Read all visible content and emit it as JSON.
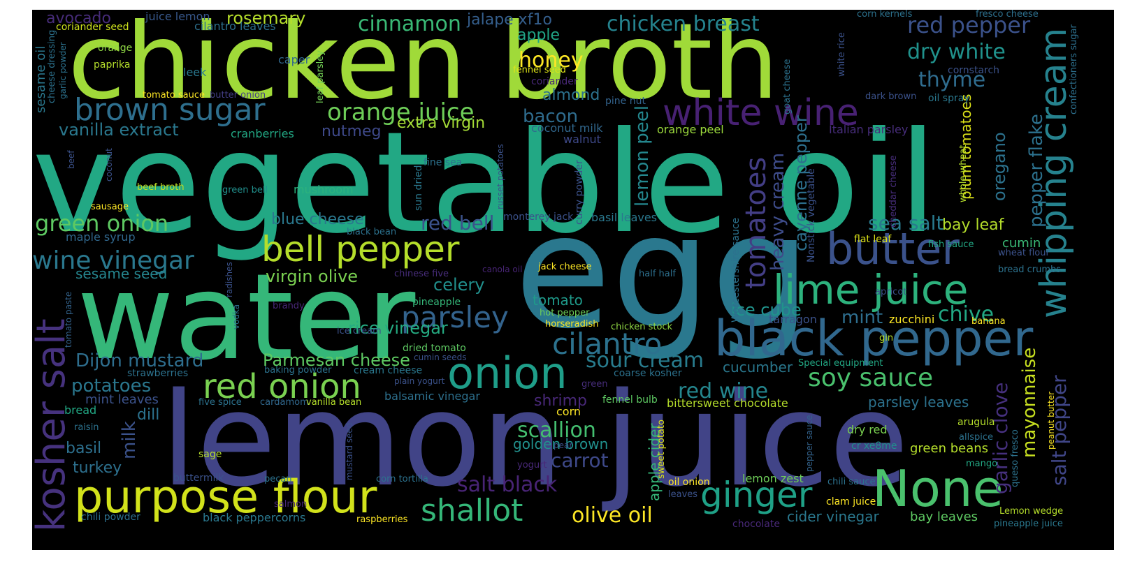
{
  "cloud": {
    "background": "#000000",
    "words": [
      {
        "text": "vegetable oil",
        "color": "#22a884"
      },
      {
        "text": "egg",
        "color": "#2a788e"
      },
      {
        "text": "lemon juice",
        "color": "#414487"
      },
      {
        "text": "water",
        "color": "#35b779"
      },
      {
        "text": "chicken broth",
        "color": "#a0da39"
      },
      {
        "text": "black pepper",
        "color": "#31688e"
      },
      {
        "text": "purpose flour",
        "color": "#d2e21b"
      },
      {
        "text": "onion",
        "color": "#1f9e89"
      },
      {
        "text": "None",
        "color": "#4ac16d"
      },
      {
        "text": "red onion",
        "color": "#7ad151"
      },
      {
        "text": "bell pepper",
        "color": "#b5de2b"
      },
      {
        "text": "butter",
        "color": "#3b528b"
      },
      {
        "text": "lime juice",
        "color": "#2db27d"
      },
      {
        "text": "white wine",
        "color": "#482173"
      },
      {
        "text": "kosher salt",
        "color": "#46327e"
      },
      {
        "text": "whipping cream",
        "color": "#26828e"
      },
      {
        "text": "brown sugar",
        "color": "#2e6f8e"
      },
      {
        "text": "ginger",
        "color": "#1fa187"
      },
      {
        "text": "shallot",
        "color": "#35b779"
      },
      {
        "text": "cilantro",
        "color": "#2c728e"
      },
      {
        "text": "parsley",
        "color": "#33638d"
      },
      {
        "text": "tomatoes",
        "color": "#433e85"
      },
      {
        "text": "orange juice",
        "color": "#6ece58"
      },
      {
        "text": "wine vinegar",
        "color": "#2a788e"
      },
      {
        "text": "green onion",
        "color": "#5ec962"
      },
      {
        "text": "soy sauce",
        "color": "#4ac16d"
      },
      {
        "text": "sour cream",
        "color": "#287c8e"
      },
      {
        "text": "cinnamon",
        "color": "#3aba76"
      },
      {
        "text": "chicken breast",
        "color": "#25838e"
      },
      {
        "text": "red pepper",
        "color": "#3b528b"
      },
      {
        "text": "dry white",
        "color": "#20928c"
      },
      {
        "text": "honey",
        "color": "#fde725"
      },
      {
        "text": "olive oil",
        "color": "#fde725"
      },
      {
        "text": "mayonnaise",
        "color": "#c8e020"
      },
      {
        "text": "garlic clove",
        "color": "#46307e"
      },
      {
        "text": "salt pepper",
        "color": "#404688"
      },
      {
        "text": "pepper flake",
        "color": "#2c718e"
      },
      {
        "text": "Dijon mustard",
        "color": "#2e6e8e"
      },
      {
        "text": "Parmesan cheese",
        "color": "#5ec962"
      },
      {
        "text": "potatoes",
        "color": "#2a778e"
      },
      {
        "text": "scallion",
        "color": "#44bf70"
      },
      {
        "text": "carrot",
        "color": "#3e4989"
      },
      {
        "text": "salt black",
        "color": "#482475"
      },
      {
        "text": "red wine",
        "color": "#24868e"
      },
      {
        "text": "heavy cream",
        "color": "#3e4c8a"
      },
      {
        "text": "sea salt",
        "color": "#297a8e"
      },
      {
        "text": "thyme",
        "color": "#2f6c8e"
      },
      {
        "text": "vanilla extract",
        "color": "#2a788e"
      },
      {
        "text": "red bell",
        "color": "#3b528b"
      },
      {
        "text": "bacon",
        "color": "#2f6c8e"
      },
      {
        "text": "lemon peel",
        "color": "#24878e"
      },
      {
        "text": "extra virgin",
        "color": "#a5db36"
      },
      {
        "text": "virgin olive",
        "color": "#7ad151"
      },
      {
        "text": "celery",
        "color": "#21908d"
      },
      {
        "text": "blue cheese",
        "color": "#2a788e"
      },
      {
        "text": "milk",
        "color": "#3b528b"
      },
      {
        "text": "chive",
        "color": "#22a884"
      },
      {
        "text": "mint",
        "color": "#2e6e8e"
      },
      {
        "text": "ice cube",
        "color": "#20938c"
      },
      {
        "text": "rice vinegar",
        "color": "#25ab82"
      },
      {
        "text": "tomato",
        "color": "#1f9a8a"
      },
      {
        "text": "cumin",
        "color": "#3aba76"
      },
      {
        "text": "bay leaf",
        "color": "#b5de2b"
      },
      {
        "text": "oregano",
        "color": "#2c728e"
      },
      {
        "text": "cayenne pepper",
        "color": "#2d708e"
      },
      {
        "text": "plum tomatoes",
        "color": "#dde318"
      },
      {
        "text": "almond",
        "color": "#2c728e"
      },
      {
        "text": "apple",
        "color": "#20a486"
      },
      {
        "text": "nutmeg",
        "color": "#3e4989"
      },
      {
        "text": "jalape xf1o",
        "color": "#355f8d"
      },
      {
        "text": "rosemary",
        "color": "#b5de2b"
      },
      {
        "text": "avocado",
        "color": "#472c7a"
      },
      {
        "text": "coriander seed",
        "color": "#cde11d"
      },
      {
        "text": "cilantro leaves",
        "color": "#2d708e"
      },
      {
        "text": "juice lemon",
        "color": "#38588c"
      },
      {
        "text": "orange",
        "color": "#8fd744"
      },
      {
        "text": "paprika",
        "color": "#b5de2b"
      },
      {
        "text": "caper",
        "color": "#31688e"
      },
      {
        "text": "leek",
        "color": "#2a788e"
      },
      {
        "text": "tomato sauce",
        "color": "#fde725"
      },
      {
        "text": "butter onion",
        "color": "#433e85"
      },
      {
        "text": "leaf parsley",
        "color": "#73d056"
      },
      {
        "text": "fennel seed",
        "color": "#dde318"
      },
      {
        "text": "coriander",
        "color": "#482878"
      },
      {
        "text": "pine nut",
        "color": "#33638d"
      },
      {
        "text": "coconut milk",
        "color": "#31688e"
      },
      {
        "text": "walnut",
        "color": "#3e4989"
      },
      {
        "text": "orange peel",
        "color": "#9bd93c"
      },
      {
        "text": "cranberries",
        "color": "#22a884"
      },
      {
        "text": "fine sea",
        "color": "#2c728e"
      },
      {
        "text": "curry powder",
        "color": "#3b528b"
      },
      {
        "text": "sun dried",
        "color": "#2a788e"
      },
      {
        "text": "russet potatoes",
        "color": "#3b528b"
      },
      {
        "text": "green bell",
        "color": "#21908d"
      },
      {
        "text": "beef broth",
        "color": "#c0df25"
      },
      {
        "text": "sausage",
        "color": "#fde725"
      },
      {
        "text": "mushroom",
        "color": "#2db27d"
      },
      {
        "text": "monterey jack",
        "color": "#3b528b"
      },
      {
        "text": "black bean",
        "color": "#2c728e"
      },
      {
        "text": "maple syrup",
        "color": "#31688e"
      },
      {
        "text": "sesame seed",
        "color": "#25858e"
      },
      {
        "text": "basil leaves",
        "color": "#2a788e"
      },
      {
        "text": "jack cheese",
        "color": "#fde725"
      },
      {
        "text": "canola oil",
        "color": "#482475"
      },
      {
        "text": "chinese five",
        "color": "#472d7b"
      },
      {
        "text": "half half",
        "color": "#2d708e"
      },
      {
        "text": "pineapple",
        "color": "#35b779"
      },
      {
        "text": "hot pepper",
        "color": "#6ece58"
      },
      {
        "text": "horseradish",
        "color": "#fde725"
      },
      {
        "text": "chicken stock",
        "color": "#90d743"
      },
      {
        "text": "brandy",
        "color": "#482878"
      },
      {
        "text": "vodka",
        "color": "#2d708e"
      },
      {
        "text": "radishes",
        "color": "#3b528b"
      },
      {
        "text": "tomato paste",
        "color": "#33638d"
      },
      {
        "text": "ice cream",
        "color": "#3b528b"
      },
      {
        "text": "dried tomato",
        "color": "#5ec962"
      },
      {
        "text": "cumin seeds",
        "color": "#3b528b"
      },
      {
        "text": "cream cheese",
        "color": "#2a788e"
      },
      {
        "text": "baking powder",
        "color": "#2c728e"
      },
      {
        "text": "plain yogurt",
        "color": "#3b528b"
      },
      {
        "text": "strawberries",
        "color": "#2c728e"
      },
      {
        "text": "green",
        "color": "#472d7b"
      },
      {
        "text": "coarse kosher",
        "color": "#2c728e"
      },
      {
        "text": "balsamic vinegar",
        "color": "#2d708e"
      },
      {
        "text": "shrimp",
        "color": "#482878"
      },
      {
        "text": "mint leaves",
        "color": "#3b528b"
      },
      {
        "text": "five spice",
        "color": "#2c728e"
      },
      {
        "text": "cardamom",
        "color": "#31688e"
      },
      {
        "text": "vanilla bean",
        "color": "#b5de2b"
      },
      {
        "text": "fennel bulb",
        "color": "#5ec962"
      },
      {
        "text": "bittersweet chocolate",
        "color": "#b5de2b"
      },
      {
        "text": "corn",
        "color": "#fde725"
      },
      {
        "text": "golden brown",
        "color": "#21908d"
      },
      {
        "text": "dill",
        "color": "#2c728e"
      },
      {
        "text": "bread",
        "color": "#22a884"
      },
      {
        "text": "raisin",
        "color": "#2c728e"
      },
      {
        "text": "basil",
        "color": "#2d708e"
      },
      {
        "text": "turkey",
        "color": "#2d708e"
      },
      {
        "text": "sage",
        "color": "#b5de2b"
      },
      {
        "text": "mustard seed",
        "color": "#3b528b"
      },
      {
        "text": "buttermilk",
        "color": "#3b528b"
      },
      {
        "text": "pecan",
        "color": "#2c728e"
      },
      {
        "text": "corn tortilla",
        "color": "#2c728e"
      },
      {
        "text": "salmon",
        "color": "#482878"
      },
      {
        "text": "chili powder",
        "color": "#2d708e"
      },
      {
        "text": "black peppercorns",
        "color": "#2a788e"
      },
      {
        "text": "raspberries",
        "color": "#fde725"
      },
      {
        "text": "apple cider",
        "color": "#35b779"
      },
      {
        "text": "sweet potato",
        "color": "#dde318"
      },
      {
        "text": "pear",
        "color": "#3b528b"
      },
      {
        "text": "yogurt",
        "color": "#482878"
      },
      {
        "text": "oil onion",
        "color": "#fde725"
      },
      {
        "text": "leaves",
        "color": "#3b528b"
      },
      {
        "text": "lemon zest",
        "color": "#6ece58"
      },
      {
        "text": "clam juice",
        "color": "#fde725"
      },
      {
        "text": "chili sauce",
        "color": "#2c728e"
      },
      {
        "text": "cider vinegar",
        "color": "#2a788e"
      },
      {
        "text": "bay leaves",
        "color": "#5ec962"
      },
      {
        "text": "chocolate",
        "color": "#482878"
      },
      {
        "text": "cucumber",
        "color": "#2a788e"
      },
      {
        "text": "Special equipment",
        "color": "#22a884"
      },
      {
        "text": "parsley leaves",
        "color": "#2c728e"
      },
      {
        "text": "dry red",
        "color": "#7ad151"
      },
      {
        "text": "cr xe8me",
        "color": "#21908d"
      },
      {
        "text": "green beans",
        "color": "#b5de2b"
      },
      {
        "text": "pepper sauce",
        "color": "#33638d"
      },
      {
        "text": "mango",
        "color": "#22a884"
      },
      {
        "text": "zucchini",
        "color": "#fde725"
      },
      {
        "text": "gin",
        "color": "#b5de2b"
      },
      {
        "text": "tarragon",
        "color": "#3b528b"
      },
      {
        "text": "banana",
        "color": "#fde725"
      },
      {
        "text": "apricot",
        "color": "#3b528b"
      },
      {
        "text": "arugula",
        "color": "#b5de2b"
      },
      {
        "text": "allspice",
        "color": "#2c728e"
      },
      {
        "text": "queso fresco",
        "color": "#2c728e"
      },
      {
        "text": "peanut butter",
        "color": "#fde725"
      },
      {
        "text": "Lemon wedge",
        "color": "#b5de2b"
      },
      {
        "text": "pineapple juice",
        "color": "#2a788e"
      },
      {
        "text": "fish sauce",
        "color": "#22a884"
      },
      {
        "text": "wheat flour",
        "color": "#3b528b"
      },
      {
        "text": "bread crumbs",
        "color": "#2c728e"
      },
      {
        "text": "flat leaf",
        "color": "#dde318"
      },
      {
        "text": "Worcestershire sauce",
        "color": "#2c728e"
      },
      {
        "text": "Nonstick vegetable",
        "color": "#3b528b"
      },
      {
        "text": "cheddar cheese",
        "color": "#472d7b"
      },
      {
        "text": "whole wheat",
        "color": "#b5de2b"
      },
      {
        "text": "Italian parsley",
        "color": "#472d7b"
      },
      {
        "text": "goat cheese",
        "color": "#2c728e"
      },
      {
        "text": "white rice",
        "color": "#3b528b"
      },
      {
        "text": "dark brown",
        "color": "#3b528b"
      },
      {
        "text": "oil spray",
        "color": "#2a788e"
      },
      {
        "text": "cornstarch",
        "color": "#3b528b"
      },
      {
        "text": "corn kernels",
        "color": "#2c728e"
      },
      {
        "text": "fresco cheese",
        "color": "#2d708e"
      },
      {
        "text": "confectioners sugar",
        "color": "#2d708e"
      },
      {
        "text": "sesame oil",
        "color": "#2a788e"
      },
      {
        "text": "cheese dressing",
        "color": "#2c728e"
      },
      {
        "text": "garlic powder",
        "color": "#2c728e"
      },
      {
        "text": "beef",
        "color": "#3b528b"
      },
      {
        "text": "coconut",
        "color": "#3b528b"
      }
    ]
  }
}
